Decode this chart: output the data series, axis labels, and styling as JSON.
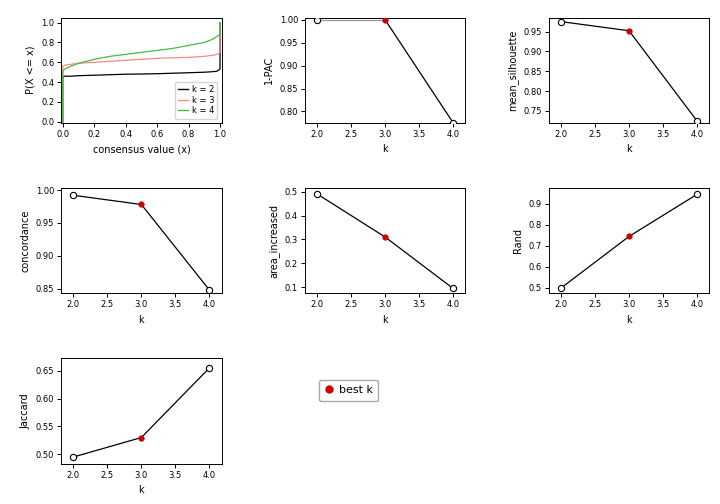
{
  "ecdf": {
    "k2": {
      "color": "#000000"
    },
    "k3": {
      "color": "#ff8888"
    },
    "k4": {
      "color": "#44bb44"
    }
  },
  "pac": {
    "k": [
      2,
      3,
      4
    ],
    "y": [
      1.0,
      1.0,
      0.775
    ],
    "best_k": 3,
    "ylabel": "1-PAC",
    "ylim": [
      0.775,
      1.005
    ],
    "yticks": [
      0.8,
      0.85,
      0.9,
      0.95,
      1.0
    ],
    "line_color_seg": [
      "#aaaaaa",
      "#000000"
    ]
  },
  "silhouette": {
    "k": [
      2,
      3,
      4
    ],
    "y": [
      0.975,
      0.952,
      0.725
    ],
    "best_k": 3,
    "ylabel": "mean_silhouette",
    "ylim": [
      0.72,
      0.985
    ],
    "yticks": [
      0.75,
      0.8,
      0.85,
      0.9,
      0.95
    ]
  },
  "concordance": {
    "k": [
      2,
      3,
      4
    ],
    "y": [
      0.992,
      0.978,
      0.848
    ],
    "best_k": 3,
    "ylabel": "concordance",
    "ylim": [
      0.843,
      1.003
    ],
    "yticks": [
      0.85,
      0.9,
      0.95,
      1.0
    ]
  },
  "area_increased": {
    "k": [
      2,
      3,
      4
    ],
    "y": [
      0.49,
      0.31,
      0.095
    ],
    "best_k": 3,
    "ylabel": "area_increased",
    "ylim": [
      0.075,
      0.515
    ],
    "yticks": [
      0.1,
      0.2,
      0.3,
      0.4,
      0.5
    ]
  },
  "rand": {
    "k": [
      2,
      3,
      4
    ],
    "y": [
      0.5,
      0.745,
      0.945
    ],
    "best_k": 3,
    "ylabel": "Rand",
    "ylim": [
      0.475,
      0.975
    ],
    "yticks": [
      0.5,
      0.6,
      0.7,
      0.8,
      0.9
    ]
  },
  "jaccard": {
    "k": [
      2,
      3,
      4
    ],
    "y": [
      0.495,
      0.53,
      0.655
    ],
    "best_k": 3,
    "ylabel": "Jaccard",
    "ylim": [
      0.483,
      0.672
    ],
    "yticks": [
      0.5,
      0.55,
      0.6,
      0.65
    ]
  },
  "line_color": "#000000",
  "open_circle_color": "#000000",
  "best_k_color": "#cc0000",
  "xlabel_k": "k",
  "ecdf_xlabel": "consensus value (x)",
  "ecdf_ylabel": "P(X <= x)",
  "bg_color": "#ffffff"
}
